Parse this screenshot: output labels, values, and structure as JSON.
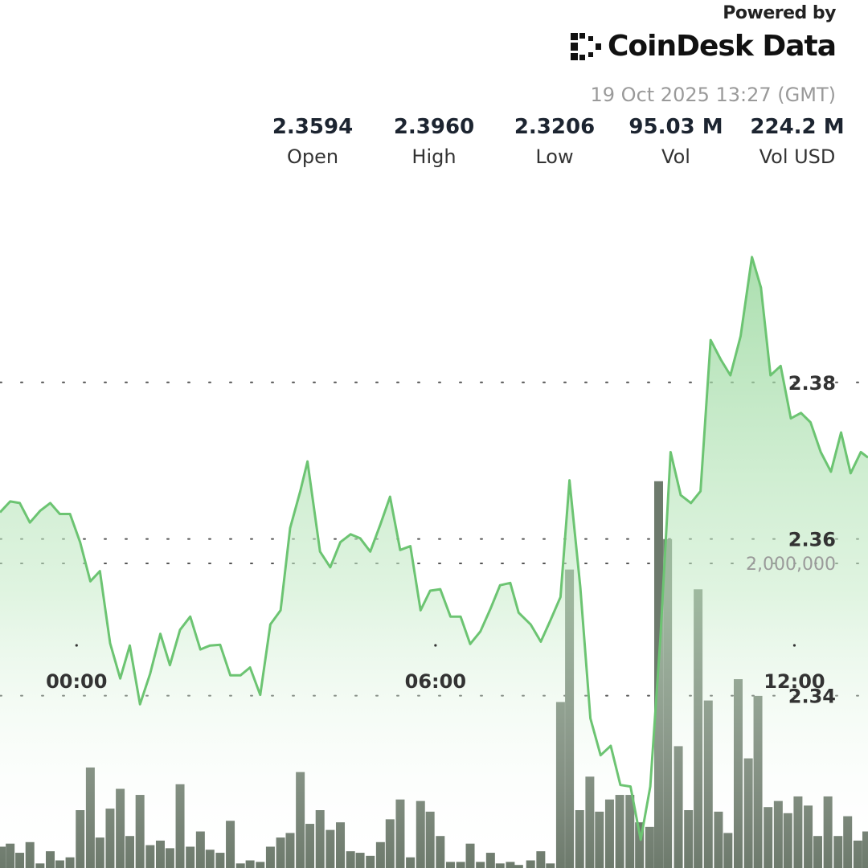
{
  "brand": {
    "powered_by": "Powered by",
    "name": "CoinDesk Data",
    "logo_icon": "coindesk-logo-icon"
  },
  "timestamp": "19 Oct 2025 13:27 (GMT)",
  "stats": [
    {
      "value": "2.3594",
      "label": "Open"
    },
    {
      "value": "2.3960",
      "label": "High"
    },
    {
      "value": "2.3206",
      "label": "Low"
    },
    {
      "value": "95.03 M",
      "label": "Vol"
    },
    {
      "value": "224.2 M",
      "label": "Vol USD"
    }
  ],
  "colors": {
    "line": "#6cc472",
    "area_top": "#8fd494",
    "bar": "#6d7a6c",
    "grid": "#555555"
  },
  "chart_data": {
    "type": "area",
    "price_yticks": [
      "2.38",
      "2.36",
      "2.34"
    ],
    "volume_ytick": "2,000,000",
    "xticks": [
      {
        "hour": 0,
        "label": "00:00"
      },
      {
        "hour": 6,
        "label": "06:00"
      },
      {
        "hour": 12,
        "label": "12:00"
      }
    ],
    "x_range_hours": [
      -1.28,
      13.23
    ],
    "price_ylim": [
      2.318,
      2.4045
    ],
    "volume_ylim": [
      0,
      5700000
    ],
    "grid": "dotted",
    "price_series": [
      {
        "x": -1.28,
        "y": 2.3634
      },
      {
        "x": -1.11,
        "y": 2.3648
      },
      {
        "x": -0.95,
        "y": 2.3646
      },
      {
        "x": -0.78,
        "y": 2.3621
      },
      {
        "x": -0.61,
        "y": 2.3636
      },
      {
        "x": -0.44,
        "y": 2.3646
      },
      {
        "x": -0.28,
        "y": 2.3632
      },
      {
        "x": -0.11,
        "y": 2.3632
      },
      {
        "x": 0.06,
        "y": 2.3596
      },
      {
        "x": 0.23,
        "y": 2.3546
      },
      {
        "x": 0.39,
        "y": 2.3559
      },
      {
        "x": 0.56,
        "y": 2.3467
      },
      {
        "x": 0.73,
        "y": 2.3422
      },
      {
        "x": 0.89,
        "y": 2.3464
      },
      {
        "x": 1.06,
        "y": 2.3389
      },
      {
        "x": 1.23,
        "y": 2.3428
      },
      {
        "x": 1.4,
        "y": 2.3479
      },
      {
        "x": 1.56,
        "y": 2.3439
      },
      {
        "x": 1.73,
        "y": 2.3484
      },
      {
        "x": 1.9,
        "y": 2.3501
      },
      {
        "x": 2.07,
        "y": 2.3459
      },
      {
        "x": 2.23,
        "y": 2.3464
      },
      {
        "x": 2.4,
        "y": 2.3465
      },
      {
        "x": 2.57,
        "y": 2.3426
      },
      {
        "x": 2.74,
        "y": 2.3426
      },
      {
        "x": 2.9,
        "y": 2.3436
      },
      {
        "x": 3.07,
        "y": 2.3401
      },
      {
        "x": 3.24,
        "y": 2.3491
      },
      {
        "x": 3.41,
        "y": 2.3509
      },
      {
        "x": 3.57,
        "y": 2.3614
      },
      {
        "x": 3.74,
        "y": 2.3661
      },
      {
        "x": 3.86,
        "y": 2.3699
      },
      {
        "x": 4.07,
        "y": 2.3584
      },
      {
        "x": 4.24,
        "y": 2.3564
      },
      {
        "x": 4.41,
        "y": 2.3596
      },
      {
        "x": 4.58,
        "y": 2.3606
      },
      {
        "x": 4.74,
        "y": 2.3601
      },
      {
        "x": 4.91,
        "y": 2.3584
      },
      {
        "x": 5.08,
        "y": 2.3619
      },
      {
        "x": 5.24,
        "y": 2.3654
      },
      {
        "x": 5.41,
        "y": 2.3586
      },
      {
        "x": 5.58,
        "y": 2.3591
      },
      {
        "x": 5.75,
        "y": 2.3509
      },
      {
        "x": 5.91,
        "y": 2.3534
      },
      {
        "x": 6.08,
        "y": 2.3536
      },
      {
        "x": 6.25,
        "y": 2.3501
      },
      {
        "x": 6.42,
        "y": 2.3501
      },
      {
        "x": 6.58,
        "y": 2.3466
      },
      {
        "x": 6.75,
        "y": 2.3482
      },
      {
        "x": 6.92,
        "y": 2.3511
      },
      {
        "x": 7.08,
        "y": 2.3541
      },
      {
        "x": 7.25,
        "y": 2.3544
      },
      {
        "x": 7.39,
        "y": 2.3506
      },
      {
        "x": 7.59,
        "y": 2.3491
      },
      {
        "x": 7.76,
        "y": 2.3469
      },
      {
        "x": 7.92,
        "y": 2.3496
      },
      {
        "x": 8.09,
        "y": 2.3526
      },
      {
        "x": 8.24,
        "y": 2.3675
      },
      {
        "x": 8.42,
        "y": 2.3539
      },
      {
        "x": 8.59,
        "y": 2.3371
      },
      {
        "x": 8.76,
        "y": 2.3324
      },
      {
        "x": 8.93,
        "y": 2.3336
      },
      {
        "x": 9.09,
        "y": 2.3286
      },
      {
        "x": 9.26,
        "y": 2.3284
      },
      {
        "x": 9.43,
        "y": 2.3216
      },
      {
        "x": 9.59,
        "y": 2.3284
      },
      {
        "x": 9.76,
        "y": 2.3474
      },
      {
        "x": 9.93,
        "y": 2.3711
      },
      {
        "x": 10.1,
        "y": 2.3656
      },
      {
        "x": 10.27,
        "y": 2.3646
      },
      {
        "x": 10.43,
        "y": 2.3661
      },
      {
        "x": 10.6,
        "y": 2.3854
      },
      {
        "x": 10.77,
        "y": 2.3829
      },
      {
        "x": 10.93,
        "y": 2.3809
      },
      {
        "x": 11.1,
        "y": 2.3859
      },
      {
        "x": 11.29,
        "y": 2.396
      },
      {
        "x": 11.44,
        "y": 2.3921
      },
      {
        "x": 11.6,
        "y": 2.3809
      },
      {
        "x": 11.77,
        "y": 2.3821
      },
      {
        "x": 11.94,
        "y": 2.3754
      },
      {
        "x": 12.11,
        "y": 2.3761
      },
      {
        "x": 12.27,
        "y": 2.3749
      },
      {
        "x": 12.44,
        "y": 2.3711
      },
      {
        "x": 12.61,
        "y": 2.3686
      },
      {
        "x": 12.78,
        "y": 2.3736
      },
      {
        "x": 12.94,
        "y": 2.3684
      },
      {
        "x": 13.11,
        "y": 2.3711
      },
      {
        "x": 13.23,
        "y": 2.3704
      }
    ],
    "volume_bars": [
      {
        "x": -1.26,
        "v": 140000
      },
      {
        "x": -1.11,
        "v": 160000
      },
      {
        "x": -0.95,
        "v": 100000
      },
      {
        "x": -0.78,
        "v": 170000
      },
      {
        "x": -0.61,
        "v": 30000
      },
      {
        "x": -0.44,
        "v": 110000
      },
      {
        "x": -0.28,
        "v": 50000
      },
      {
        "x": -0.11,
        "v": 70000
      },
      {
        "x": 0.06,
        "v": 380000
      },
      {
        "x": 0.23,
        "v": 660000
      },
      {
        "x": 0.39,
        "v": 200000
      },
      {
        "x": 0.56,
        "v": 390000
      },
      {
        "x": 0.73,
        "v": 520000
      },
      {
        "x": 0.89,
        "v": 210000
      },
      {
        "x": 1.06,
        "v": 480000
      },
      {
        "x": 1.23,
        "v": 150000
      },
      {
        "x": 1.4,
        "v": 180000
      },
      {
        "x": 1.56,
        "v": 130000
      },
      {
        "x": 1.73,
        "v": 550000
      },
      {
        "x": 1.9,
        "v": 140000
      },
      {
        "x": 2.07,
        "v": 240000
      },
      {
        "x": 2.23,
        "v": 120000
      },
      {
        "x": 2.4,
        "v": 100000
      },
      {
        "x": 2.57,
        "v": 310000
      },
      {
        "x": 2.74,
        "v": 30000
      },
      {
        "x": 2.9,
        "v": 50000
      },
      {
        "x": 3.07,
        "v": 40000
      },
      {
        "x": 3.24,
        "v": 140000
      },
      {
        "x": 3.41,
        "v": 200000
      },
      {
        "x": 3.57,
        "v": 230000
      },
      {
        "x": 3.74,
        "v": 630000
      },
      {
        "x": 3.9,
        "v": 290000
      },
      {
        "x": 4.07,
        "v": 380000
      },
      {
        "x": 4.24,
        "v": 250000
      },
      {
        "x": 4.41,
        "v": 300000
      },
      {
        "x": 4.58,
        "v": 110000
      },
      {
        "x": 4.74,
        "v": 100000
      },
      {
        "x": 4.91,
        "v": 80000
      },
      {
        "x": 5.08,
        "v": 170000
      },
      {
        "x": 5.24,
        "v": 320000
      },
      {
        "x": 5.41,
        "v": 450000
      },
      {
        "x": 5.58,
        "v": 70000
      },
      {
        "x": 5.75,
        "v": 440000
      },
      {
        "x": 5.91,
        "v": 370000
      },
      {
        "x": 6.08,
        "v": 210000
      },
      {
        "x": 6.25,
        "v": 40000
      },
      {
        "x": 6.42,
        "v": 40000
      },
      {
        "x": 6.58,
        "v": 160000
      },
      {
        "x": 6.75,
        "v": 40000
      },
      {
        "x": 6.92,
        "v": 100000
      },
      {
        "x": 7.08,
        "v": 30000
      },
      {
        "x": 7.25,
        "v": 40000
      },
      {
        "x": 7.39,
        "v": 20000
      },
      {
        "x": 7.59,
        "v": 50000
      },
      {
        "x": 7.76,
        "v": 110000
      },
      {
        "x": 7.92,
        "v": 30000
      },
      {
        "x": 8.09,
        "v": 1090000
      },
      {
        "x": 8.24,
        "v": 1960000
      },
      {
        "x": 8.41,
        "v": 380000
      },
      {
        "x": 8.58,
        "v": 600000
      },
      {
        "x": 8.74,
        "v": 370000
      },
      {
        "x": 8.91,
        "v": 450000
      },
      {
        "x": 9.08,
        "v": 480000
      },
      {
        "x": 9.25,
        "v": 480000
      },
      {
        "x": 9.41,
        "v": 300000
      },
      {
        "x": 9.58,
        "v": 270000
      },
      {
        "x": 9.73,
        "v": 2540000
      },
      {
        "x": 9.88,
        "v": 2160000
      },
      {
        "x": 10.06,
        "v": 800000
      },
      {
        "x": 10.23,
        "v": 380000
      },
      {
        "x": 10.39,
        "v": 1830000
      },
      {
        "x": 10.56,
        "v": 1100000
      },
      {
        "x": 10.73,
        "v": 370000
      },
      {
        "x": 10.89,
        "v": 230000
      },
      {
        "x": 11.06,
        "v": 1240000
      },
      {
        "x": 11.23,
        "v": 720000
      },
      {
        "x": 11.39,
        "v": 1130000
      },
      {
        "x": 11.56,
        "v": 400000
      },
      {
        "x": 11.73,
        "v": 440000
      },
      {
        "x": 11.89,
        "v": 360000
      },
      {
        "x": 12.06,
        "v": 470000
      },
      {
        "x": 12.23,
        "v": 410000
      },
      {
        "x": 12.39,
        "v": 210000
      },
      {
        "x": 12.56,
        "v": 470000
      },
      {
        "x": 12.73,
        "v": 210000
      },
      {
        "x": 12.89,
        "v": 340000
      },
      {
        "x": 13.06,
        "v": 180000
      },
      {
        "x": 13.21,
        "v": 240000
      }
    ]
  }
}
